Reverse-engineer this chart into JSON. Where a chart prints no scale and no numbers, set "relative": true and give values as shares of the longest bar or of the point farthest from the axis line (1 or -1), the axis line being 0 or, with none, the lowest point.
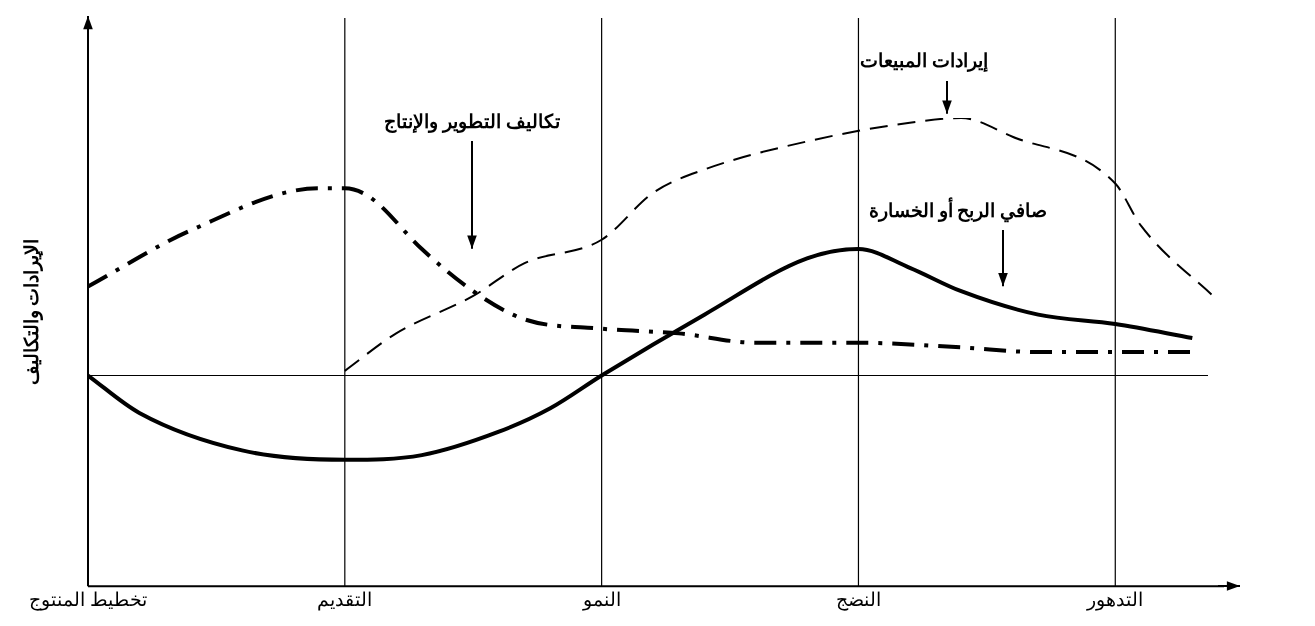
{
  "chart_data": {
    "type": "line",
    "relative": true,
    "ylabel": "الإيرادات والتكاليف",
    "categories": [
      "تخطيط المنتوج",
      null,
      null,
      null,
      null,
      null,
      null,
      null,
      null,
      null,
      "التقديم",
      null,
      null,
      null,
      null,
      null,
      null,
      null,
      null,
      null,
      "النمو",
      null,
      null,
      null,
      null,
      null,
      null,
      null,
      null,
      null,
      "النضج",
      null,
      null,
      null,
      null,
      null,
      null,
      null,
      null,
      null,
      "التدهور",
      null,
      null,
      null,
      null
    ],
    "grid": false,
    "legend": false,
    "marker": "none",
    "series": [
      {
        "name": "تكاليف التطوير والإنتاج",
        "color": "#000000",
        "line_style": "dashdot",
        "values": [
          0.64,
          null,
          null,
          null,
          0.76,
          null,
          null,
          null,
          null,
          0.85,
          0.85,
          0.83,
          null,
          0.72,
          null,
          0.63,
          null,
          0.57,
          null,
          null,
          0.55,
          null,
          null,
          0.54,
          null,
          null,
          0.52,
          null,
          null,
          null,
          0.52,
          null,
          null,
          null,
          0.51,
          null,
          null,
          0.5,
          null,
          null,
          null,
          null,
          null,
          0.5,
          null
        ]
      },
      {
        "name": "إيرادات المبيعات",
        "color": "#000000",
        "line_style": "dashed",
        "values": [
          null,
          null,
          null,
          null,
          null,
          null,
          null,
          null,
          null,
          null,
          0.46,
          null,
          0.54,
          null,
          null,
          0.62,
          null,
          0.69,
          null,
          null,
          0.74,
          null,
          0.84,
          null,
          0.89,
          null,
          null,
          null,
          0.95,
          null,
          null,
          null,
          0.99,
          null,
          1,
          null,
          0.96,
          null,
          null,
          null,
          0.86,
          0.77,
          null,
          null,
          0.61
        ]
      },
      {
        "name": "صافي الربح أو الخسارة",
        "color": "#000000",
        "line_style": "solid",
        "values": [
          0.45,
          null,
          0.37,
          null,
          null,
          null,
          0.29,
          null,
          null,
          null,
          0.27,
          null,
          null,
          0.28,
          null,
          null,
          0.33,
          null,
          0.38,
          null,
          0.45,
          null,
          null,
          null,
          0.58,
          null,
          null,
          null,
          0.7,
          null,
          0.72,
          null,
          0.68,
          null,
          0.63,
          null,
          null,
          0.58,
          null,
          null,
          0.56,
          null,
          null,
          0.53,
          null
        ]
      }
    ],
    "ref_lines": [
      {
        "axis": "y",
        "value": 0.45
      },
      {
        "axis": "x",
        "value": "التقديم"
      },
      {
        "axis": "x",
        "value": "النمو"
      },
      {
        "axis": "x",
        "value": "النضج"
      },
      {
        "axis": "x",
        "value": "التدهور"
      }
    ]
  }
}
